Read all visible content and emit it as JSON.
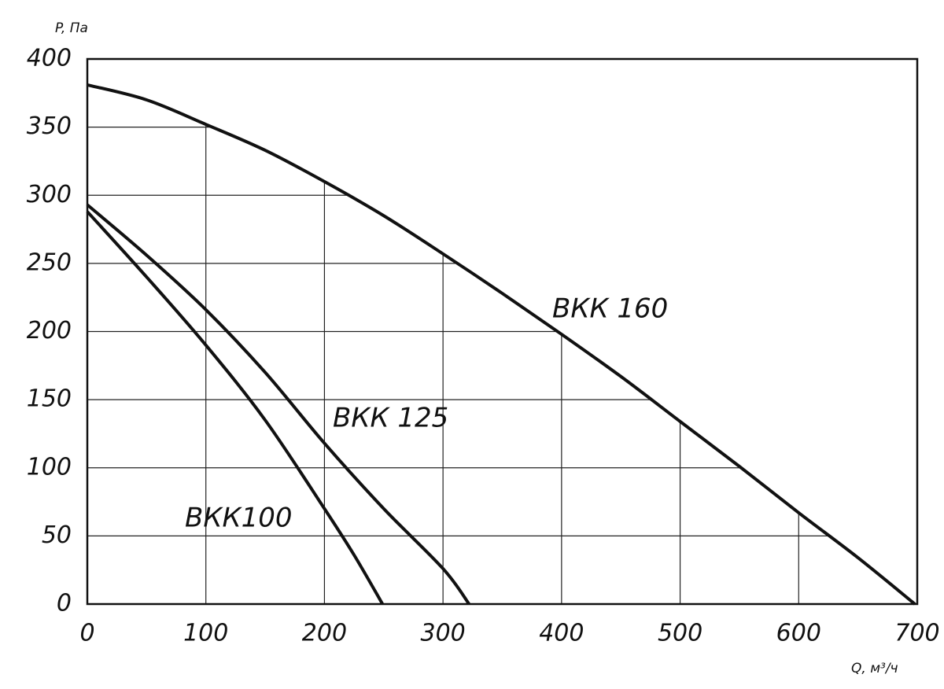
{
  "chart_data": {
    "type": "line",
    "y_label": "P, Па",
    "x_label": "Q, м³/ч",
    "xlim": [
      0,
      700
    ],
    "ylim": [
      0,
      400
    ],
    "xticks": [
      0,
      100,
      200,
      300,
      400,
      500,
      600,
      700
    ],
    "yticks": [
      0,
      50,
      100,
      150,
      200,
      250,
      300,
      350,
      400
    ],
    "grid": true,
    "series": [
      {
        "name": "ВКК100",
        "color": "#111111",
        "x": [
          0,
          50,
          100,
          150,
          200,
          225,
          249
        ],
        "values": [
          288,
          240,
          190,
          135,
          70,
          36,
          0
        ]
      },
      {
        "name": "ВКК 125",
        "color": "#111111",
        "x": [
          0,
          50,
          100,
          150,
          200,
          250,
          300,
          322
        ],
        "values": [
          293,
          256,
          216,
          170,
          118,
          70,
          26,
          0
        ]
      },
      {
        "name": "ВКК 160",
        "color": "#111111",
        "x": [
          0,
          50,
          100,
          150,
          200,
          250,
          300,
          350,
          400,
          450,
          500,
          550,
          600,
          650,
          698
        ],
        "values": [
          381,
          370,
          352,
          333,
          310,
          285,
          257,
          228,
          198,
          167,
          134,
          101,
          67,
          34,
          0
        ]
      }
    ]
  }
}
